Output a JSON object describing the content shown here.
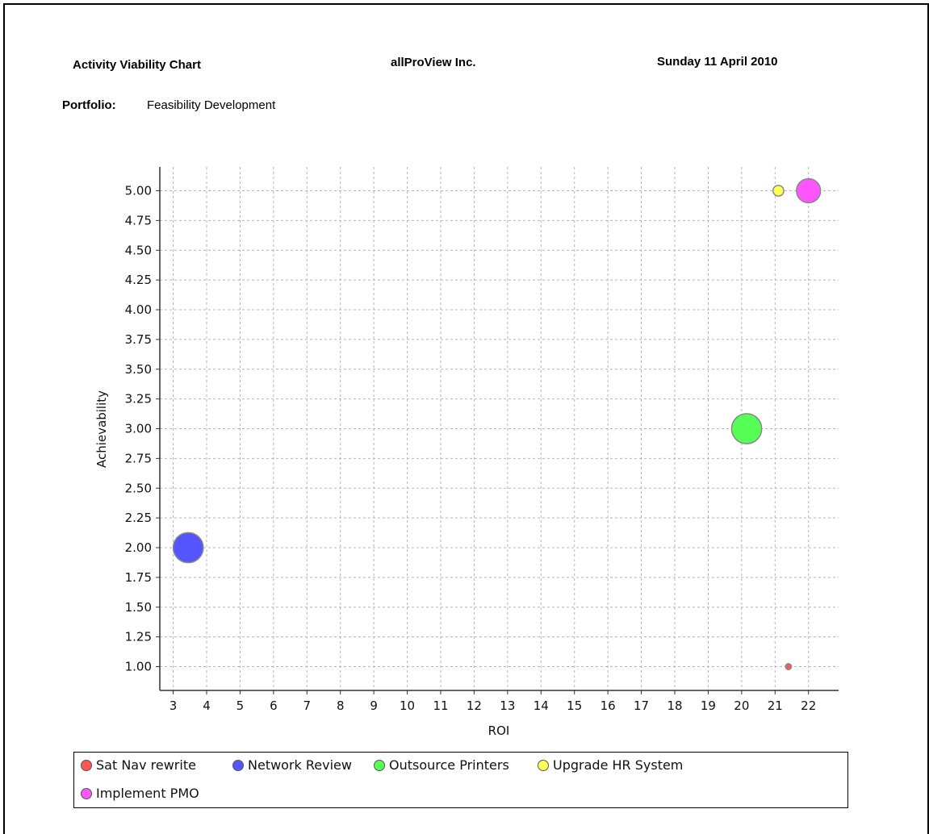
{
  "header": {
    "report_title": "Activity Viability Chart",
    "company": "allProView Inc.",
    "date": "Sunday 11 April 2010",
    "portfolio_label": "Portfolio:",
    "portfolio_value": "Feasibility Development"
  },
  "chart_data": {
    "type": "scatter",
    "subtype": "bubble",
    "title": "",
    "xlabel": "ROI",
    "ylabel": "Achievability",
    "xlim": [
      2.6,
      22.9
    ],
    "ylim": [
      0.8,
      5.2
    ],
    "x_ticks": [
      "3",
      "4",
      "5",
      "6",
      "7",
      "8",
      "9",
      "10",
      "11",
      "12",
      "13",
      "14",
      "15",
      "16",
      "17",
      "18",
      "19",
      "20",
      "21",
      "22"
    ],
    "y_ticks": [
      "1.00",
      "1.25",
      "1.50",
      "1.75",
      "2.00",
      "2.25",
      "2.50",
      "2.75",
      "3.00",
      "3.25",
      "3.50",
      "3.75",
      "4.00",
      "4.25",
      "4.50",
      "4.75",
      "5.00"
    ],
    "grid": true,
    "legend_position": "bottom",
    "series": [
      {
        "name": "Sat Nav rewrite",
        "x": 21.4,
        "y": 1.0,
        "size": 0.18,
        "color": "#ff5555"
      },
      {
        "name": "Network Review",
        "x": 3.45,
        "y": 2.0,
        "size": 0.9,
        "color": "#5555ff"
      },
      {
        "name": "Outsource Printers",
        "x": 20.15,
        "y": 3.0,
        "size": 0.9,
        "color": "#55ff55"
      },
      {
        "name": "Upgrade HR System",
        "x": 21.1,
        "y": 5.0,
        "size": 0.32,
        "color": "#ffff55"
      },
      {
        "name": "Implement PMO",
        "x": 22.0,
        "y": 5.0,
        "size": 0.72,
        "color": "#ff55ff"
      }
    ]
  }
}
